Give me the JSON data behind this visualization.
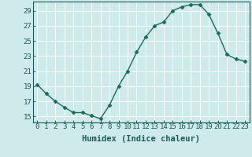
{
  "x": [
    0,
    1,
    2,
    3,
    4,
    5,
    6,
    7,
    8,
    9,
    10,
    11,
    12,
    13,
    14,
    15,
    16,
    17,
    18,
    19,
    20,
    21,
    22,
    23
  ],
  "y": [
    19.2,
    18.0,
    17.0,
    16.2,
    15.5,
    15.5,
    15.1,
    14.7,
    16.5,
    19.0,
    21.0,
    23.5,
    25.5,
    27.0,
    27.5,
    29.0,
    29.5,
    29.8,
    29.8,
    28.5,
    26.0,
    23.2,
    22.6,
    22.3
  ],
  "xlabel": "Humidex (Indice chaleur)",
  "xlim": [
    -0.5,
    23.5
  ],
  "ylim": [
    14.2,
    30.2
  ],
  "yticks": [
    15,
    17,
    19,
    21,
    23,
    25,
    27,
    29
  ],
  "xticks": [
    0,
    1,
    2,
    3,
    4,
    5,
    6,
    7,
    8,
    9,
    10,
    11,
    12,
    13,
    14,
    15,
    16,
    17,
    18,
    19,
    20,
    21,
    22,
    23
  ],
  "xtick_labels": [
    "0",
    "1",
    "2",
    "3",
    "4",
    "5",
    "6",
    "7",
    "8",
    "9",
    "10",
    "11",
    "12",
    "13",
    "14",
    "15",
    "16",
    "17",
    "18",
    "19",
    "20",
    "21",
    "22",
    "23"
  ],
  "line_color": "#1a6b5e",
  "marker": "D",
  "marker_size": 2.5,
  "line_width": 1.0,
  "bg_color": "#ceeaea",
  "grid_color": "#ffffff",
  "tick_fontsize": 6.5,
  "xlabel_fontsize": 7.5
}
